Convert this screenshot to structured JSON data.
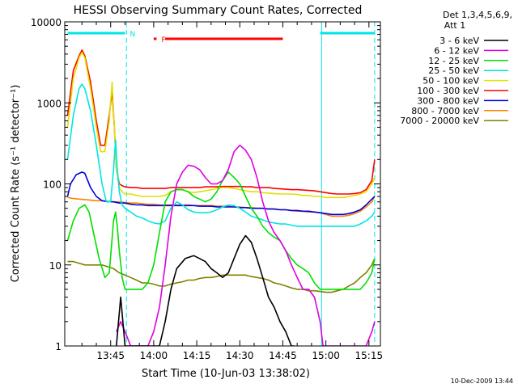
{
  "chart_data": {
    "type": "line",
    "title": "HESSI Observing Summary Count Rates, Corrected",
    "xlabel": "Start Time (10-Jun-03 13:38:02)",
    "ylabel": "Corrected Count Rate (s⁻¹ detector⁻¹)",
    "x_unit": "minutes after 13:38:02",
    "xlim": [
      -9.0,
      101.0
    ],
    "ylim": [
      1,
      10000
    ],
    "yscale": "log",
    "x_ticks": [
      {
        "x": 7,
        "label": "13:45"
      },
      {
        "x": 22,
        "label": "14:00"
      },
      {
        "x": 37,
        "label": "14:15"
      },
      {
        "x": 52,
        "label": "14:30"
      },
      {
        "x": 67,
        "label": "14:45"
      },
      {
        "x": 82,
        "label": "15:00"
      },
      {
        "x": 97,
        "label": "15:15"
      }
    ],
    "y_ticks": [
      {
        "y": 1,
        "label": "1"
      },
      {
        "y": 10,
        "label": "10"
      },
      {
        "y": 100,
        "label": "100"
      },
      {
        "y": 1000,
        "label": "1000"
      },
      {
        "y": 10000,
        "label": "10000"
      }
    ],
    "legend_header": [
      "Det 1,3,4,5,6,9,",
      "Att 1"
    ],
    "legend_placement": "right",
    "footer": "10-Dec-2009 13:44",
    "flags": [
      {
        "label": "N",
        "color": "#00e5e5",
        "segments": [
          [
            -8,
            12
          ],
          [
            80,
            99
          ]
        ]
      },
      {
        "label": "F",
        "color": "#ff0000",
        "segments": [
          [
            22,
            23
          ],
          [
            26,
            67
          ]
        ]
      }
    ],
    "vlines": [
      {
        "x": 12.5,
        "style": "dashed",
        "color": "#00e5e5"
      },
      {
        "x": 80.5,
        "style": "solid",
        "color": "#00e5e5"
      },
      {
        "x": 99,
        "style": "dashed",
        "color": "#00e5e5"
      }
    ],
    "series": [
      {
        "name": "3 - 6 keV",
        "color": "#000000",
        "x": [
          9,
          10.5,
          12,
          14,
          16,
          18,
          21,
          24,
          26,
          28,
          30,
          33,
          36,
          38,
          40,
          42,
          44,
          46,
          48,
          50,
          52,
          54,
          56,
          58,
          60,
          62,
          64,
          66,
          68,
          70,
          71
        ],
        "y": [
          1,
          4,
          1,
          1,
          1,
          1,
          1,
          1,
          2,
          5,
          9,
          12,
          13,
          12,
          11,
          9,
          8,
          7,
          8,
          12,
          18,
          23,
          19,
          12,
          7,
          4,
          3,
          2,
          1.5,
          1,
          1
        ]
      },
      {
        "name": "6 - 12 keV",
        "color": "#e000e0",
        "x": [
          9,
          10.5,
          12,
          14,
          16,
          18,
          20,
          22,
          24,
          26,
          28,
          30,
          32,
          34,
          36,
          38,
          40,
          42,
          44,
          46,
          48,
          50,
          52,
          54,
          56,
          58,
          60,
          62,
          64,
          66,
          68,
          70,
          72,
          74,
          76,
          78,
          80,
          81,
          82,
          84,
          86,
          88,
          90,
          92,
          94,
          96,
          98,
          99
        ],
        "y": [
          1.5,
          2,
          1.5,
          1,
          1,
          1,
          1,
          1.5,
          3,
          10,
          40,
          100,
          140,
          170,
          165,
          150,
          120,
          100,
          100,
          110,
          150,
          250,
          300,
          260,
          200,
          120,
          60,
          35,
          25,
          20,
          15,
          10,
          7,
          5,
          5,
          4,
          2,
          1,
          1,
          1,
          1,
          1,
          1,
          1,
          1,
          1,
          1.5,
          2
        ]
      },
      {
        "name": "12 - 25 keV",
        "color": "#00e000",
        "x": [
          -8,
          -6,
          -4,
          -2,
          -0.5,
          1,
          3,
          5,
          6.5,
          8,
          8.7,
          9.3,
          10,
          11,
          12,
          14,
          16,
          18,
          20,
          22,
          24,
          26,
          28,
          30,
          32,
          34,
          36,
          38,
          40,
          42,
          44,
          46,
          48,
          50,
          52,
          54,
          56,
          58,
          60,
          62,
          64,
          66,
          68,
          70,
          72,
          74,
          76,
          78,
          80,
          82,
          84,
          86,
          88,
          90,
          92,
          94,
          96,
          98,
          99
        ],
        "y": [
          20,
          35,
          50,
          55,
          45,
          25,
          12,
          7,
          8,
          35,
          45,
          30,
          15,
          7,
          5,
          5,
          5,
          5,
          6,
          10,
          25,
          60,
          80,
          85,
          85,
          80,
          70,
          65,
          60,
          65,
          80,
          110,
          140,
          120,
          100,
          70,
          50,
          40,
          30,
          25,
          22,
          20,
          15,
          12,
          10,
          9,
          8,
          6,
          5,
          5,
          5,
          5,
          5,
          5,
          5,
          5,
          6,
          8,
          12
        ]
      },
      {
        "name": "25 - 50 keV",
        "color": "#00e5e5",
        "x": [
          -8,
          -6,
          -4,
          -3,
          -2,
          0,
          2,
          4,
          5.5,
          7,
          8,
          8.7,
          9.3,
          10,
          11,
          12,
          14,
          16,
          18,
          20,
          22,
          24,
          26,
          28,
          30,
          32,
          34,
          36,
          38,
          40,
          42,
          44,
          46,
          48,
          50,
          52,
          54,
          56,
          58,
          60,
          62,
          64,
          66,
          68,
          70,
          72,
          74,
          76,
          78,
          80,
          82,
          84,
          86,
          88,
          90,
          92,
          94,
          96,
          98,
          99
        ],
        "y": [
          200,
          700,
          1500,
          1700,
          1500,
          800,
          300,
          100,
          60,
          60,
          150,
          350,
          150,
          80,
          55,
          50,
          45,
          40,
          38,
          35,
          33,
          32,
          35,
          50,
          60,
          55,
          48,
          45,
          44,
          44,
          45,
          48,
          52,
          55,
          54,
          50,
          45,
          40,
          38,
          36,
          34,
          33,
          32,
          32,
          31,
          30,
          30,
          30,
          30,
          30,
          30,
          30,
          30,
          30,
          30,
          30,
          32,
          35,
          40,
          45
        ]
      },
      {
        "name": "50 - 100 keV",
        "color": "#e0e000",
        "x": [
          -8,
          -6,
          -4,
          -3,
          -2,
          0,
          2,
          3.5,
          5,
          6.5,
          7.5,
          8.3,
          9,
          10,
          11,
          12,
          14,
          16,
          18,
          20,
          22,
          24,
          26,
          28,
          30,
          32,
          34,
          36,
          38,
          40,
          42,
          44,
          46,
          48,
          50,
          52,
          54,
          56,
          58,
          60,
          62,
          64,
          66,
          68,
          70,
          72,
          74,
          76,
          78,
          80,
          82,
          84,
          86,
          88,
          90,
          92,
          94,
          96,
          98,
          99
        ],
        "y": [
          500,
          2000,
          3600,
          4200,
          3600,
          1500,
          500,
          250,
          250,
          600,
          1800,
          500,
          150,
          90,
          80,
          75,
          75,
          72,
          70,
          70,
          70,
          70,
          72,
          80,
          85,
          85,
          80,
          78,
          80,
          82,
          85,
          88,
          90,
          90,
          88,
          85,
          82,
          80,
          80,
          78,
          77,
          76,
          75,
          75,
          75,
          74,
          72,
          72,
          70,
          70,
          68,
          68,
          68,
          68,
          70,
          72,
          75,
          80,
          100,
          120
        ]
      },
      {
        "name": "100 - 300 keV",
        "color": "#ff0000",
        "x": [
          -8,
          -6,
          -4,
          -3,
          -2,
          0,
          2,
          3.5,
          5,
          6.5,
          7.5,
          8.3,
          9,
          10,
          11,
          12,
          14,
          16,
          18,
          20,
          22,
          24,
          26,
          28,
          30,
          32,
          34,
          36,
          38,
          40,
          42,
          44,
          46,
          48,
          50,
          52,
          54,
          56,
          58,
          60,
          62,
          64,
          66,
          68,
          70,
          72,
          74,
          76,
          78,
          80,
          82,
          84,
          86,
          88,
          90,
          92,
          94,
          96,
          98,
          99
        ],
        "y": [
          700,
          2500,
          3800,
          4500,
          3800,
          1800,
          600,
          300,
          300,
          700,
          1400,
          500,
          150,
          100,
          95,
          92,
          90,
          90,
          88,
          88,
          88,
          88,
          88,
          90,
          90,
          90,
          90,
          90,
          90,
          92,
          92,
          92,
          93,
          93,
          93,
          93,
          92,
          92,
          90,
          90,
          90,
          88,
          87,
          86,
          85,
          85,
          84,
          83,
          82,
          80,
          78,
          76,
          75,
          75,
          75,
          76,
          78,
          85,
          110,
          200
        ]
      },
      {
        "name": "300 - 800 keV",
        "color": "#0000e0",
        "x": [
          -8,
          -7,
          -5,
          -3,
          -2,
          -1,
          0,
          2,
          4,
          6,
          8,
          10,
          12,
          14,
          16,
          18,
          20,
          22,
          24,
          26,
          28,
          30,
          32,
          34,
          36,
          38,
          40,
          42,
          44,
          46,
          48,
          50,
          52,
          54,
          56,
          58,
          60,
          62,
          64,
          66,
          68,
          70,
          72,
          74,
          76,
          78,
          80,
          82,
          84,
          86,
          88,
          90,
          92,
          94,
          96,
          98,
          99
        ],
        "y": [
          70,
          100,
          130,
          140,
          135,
          110,
          90,
          70,
          62,
          60,
          60,
          58,
          58,
          56,
          55,
          55,
          54,
          54,
          54,
          54,
          54,
          54,
          54,
          54,
          54,
          53,
          53,
          53,
          52,
          52,
          52,
          52,
          51,
          51,
          50,
          50,
          50,
          49,
          49,
          48,
          48,
          47,
          47,
          46,
          46,
          45,
          44,
          43,
          42,
          42,
          42,
          43,
          45,
          48,
          55,
          65,
          70
        ]
      },
      {
        "name": "800 - 7000 keV",
        "color": "#ff8000",
        "x": [
          -8,
          -6,
          -4,
          -2,
          0,
          2,
          4,
          6,
          8,
          10,
          12,
          14,
          16,
          18,
          20,
          22,
          24,
          26,
          28,
          30,
          32,
          34,
          36,
          38,
          40,
          42,
          44,
          46,
          48,
          50,
          52,
          54,
          56,
          58,
          60,
          62,
          64,
          66,
          68,
          70,
          72,
          74,
          76,
          78,
          80,
          82,
          84,
          86,
          88,
          90,
          92,
          94,
          96,
          98,
          99
        ],
        "y": [
          68,
          66,
          65,
          64,
          63,
          62,
          62,
          61,
          60,
          60,
          59,
          58,
          58,
          57,
          56,
          56,
          55,
          55,
          55,
          55,
          55,
          55,
          54,
          54,
          54,
          54,
          53,
          53,
          53,
          52,
          52,
          51,
          51,
          50,
          50,
          49,
          49,
          48,
          48,
          47,
          46,
          46,
          45,
          45,
          44,
          42,
          40,
          40,
          40,
          41,
          43,
          46,
          52,
          60,
          70
        ]
      },
      {
        "name": "7000 - 20000 keV",
        "color": "#808000",
        "x": [
          -8,
          -6,
          -4,
          -2,
          0,
          2,
          4,
          6,
          8,
          10,
          12,
          14,
          16,
          18,
          20,
          22,
          24,
          26,
          28,
          30,
          32,
          34,
          36,
          38,
          40,
          42,
          44,
          46,
          48,
          50,
          52,
          54,
          56,
          58,
          60,
          62,
          64,
          66,
          68,
          70,
          72,
          74,
          76,
          78,
          80,
          82,
          84,
          86,
          88,
          90,
          92,
          94,
          96,
          98,
          99
        ],
        "y": [
          11,
          11,
          10.5,
          10,
          10,
          10,
          10,
          9.5,
          9,
          8,
          7.5,
          7,
          6.5,
          6,
          6,
          5.8,
          5.5,
          5.5,
          5.8,
          6,
          6.2,
          6.5,
          6.5,
          6.8,
          7,
          7,
          7.2,
          7.5,
          7.5,
          7.5,
          7.5,
          7.5,
          7.2,
          7,
          6.8,
          6.5,
          6,
          5.8,
          5.5,
          5.2,
          5,
          5,
          4.8,
          4.8,
          4.7,
          4.6,
          4.6,
          4.8,
          5,
          5.5,
          6,
          7,
          8,
          10,
          12
        ]
      }
    ]
  }
}
